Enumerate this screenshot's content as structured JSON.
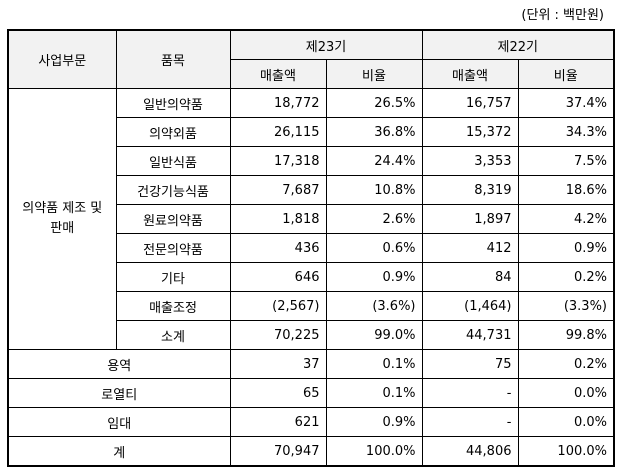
{
  "unit_label": "(단위 : 백만원)",
  "header": {
    "segment": "사업부문",
    "item": "품목",
    "period_23": "제23기",
    "period_22": "제22기",
    "sales": "매출액",
    "ratio": "비율"
  },
  "segment_pharma_line1": "의약품 제조 및",
  "segment_pharma_line2": "판매",
  "pharma_rows": [
    {
      "item": "일반의약품",
      "s23": "18,772",
      "r23": "26.5%",
      "s22": "16,757",
      "r22": "37.4%"
    },
    {
      "item": "의약외품",
      "s23": "26,115",
      "r23": "36.8%",
      "s22": "15,372",
      "r22": "34.3%"
    },
    {
      "item": "일반식품",
      "s23": "17,318",
      "r23": "24.4%",
      "s22": "3,353",
      "r22": "7.5%"
    },
    {
      "item": "건강기능식품",
      "s23": "7,687",
      "r23": "10.8%",
      "s22": "8,319",
      "r22": "18.6%"
    },
    {
      "item": "원료의약품",
      "s23": "1,818",
      "r23": "2.6%",
      "s22": "1,897",
      "r22": "4.2%"
    },
    {
      "item": "전문의약품",
      "s23": "436",
      "r23": "0.6%",
      "s22": "412",
      "r22": "0.9%"
    },
    {
      "item": "기타",
      "s23": "646",
      "r23": "0.9%",
      "s22": "84",
      "r22": "0.2%"
    },
    {
      "item": "매출조정",
      "s23": "(2,567)",
      "r23": "(3.6%)",
      "s22": "(1,464)",
      "r22": "(3.3%)"
    },
    {
      "item": "소계",
      "s23": "70,225",
      "r23": "99.0%",
      "s22": "44,731",
      "r22": "99.8%"
    }
  ],
  "other_rows": [
    {
      "label": "용역",
      "s23": "37",
      "r23": "0.1%",
      "s22": "75",
      "r22": "0.2%"
    },
    {
      "label": "로열티",
      "s23": "65",
      "r23": "0.1%",
      "s22": "-",
      "r22": "0.0%"
    },
    {
      "label": "임대",
      "s23": "621",
      "r23": "0.9%",
      "s22": "-",
      "r22": "0.0%"
    },
    {
      "label": "계",
      "s23": "70,947",
      "r23": "100.0%",
      "s22": "44,806",
      "r22": "100.0%"
    }
  ]
}
